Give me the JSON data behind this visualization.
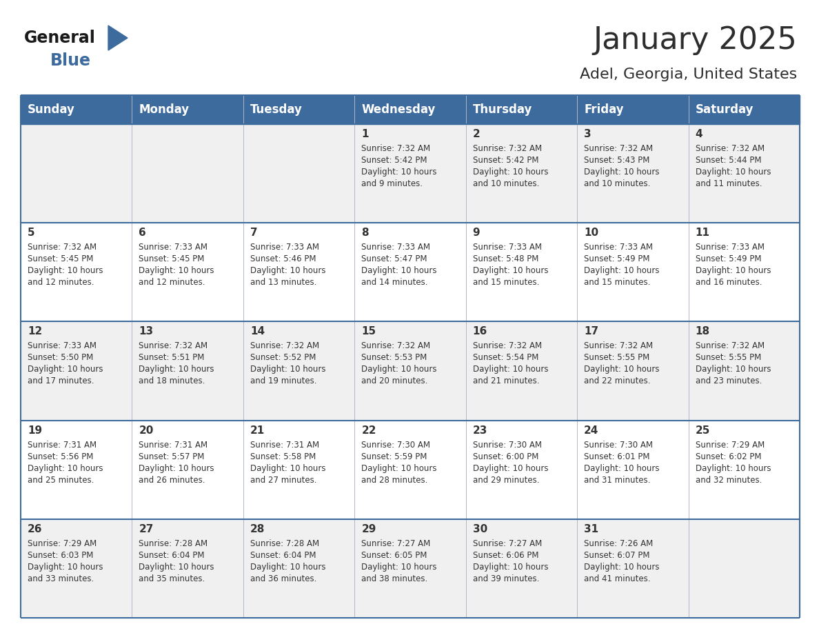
{
  "title": "January 2025",
  "subtitle": "Adel, Georgia, United States",
  "title_color": "#2d2d2d",
  "subtitle_color": "#2d2d2d",
  "header_bg_color": "#3d6b9e",
  "header_text_color": "#ffffff",
  "row_bg_color_light": "#f0f0f0",
  "row_bg_color_white": "#ffffff",
  "cell_text_color": "#333333",
  "day_number_color": "#333333",
  "grid_line_color": "#3d6b9e",
  "grid_line_color_v": "#b0b8c8",
  "days_of_week": [
    "Sunday",
    "Monday",
    "Tuesday",
    "Wednesday",
    "Thursday",
    "Friday",
    "Saturday"
  ],
  "weeks": [
    [
      {
        "day": "",
        "info": ""
      },
      {
        "day": "",
        "info": ""
      },
      {
        "day": "",
        "info": ""
      },
      {
        "day": "1",
        "info": "Sunrise: 7:32 AM\nSunset: 5:42 PM\nDaylight: 10 hours\nand 9 minutes."
      },
      {
        "day": "2",
        "info": "Sunrise: 7:32 AM\nSunset: 5:42 PM\nDaylight: 10 hours\nand 10 minutes."
      },
      {
        "day": "3",
        "info": "Sunrise: 7:32 AM\nSunset: 5:43 PM\nDaylight: 10 hours\nand 10 minutes."
      },
      {
        "day": "4",
        "info": "Sunrise: 7:32 AM\nSunset: 5:44 PM\nDaylight: 10 hours\nand 11 minutes."
      }
    ],
    [
      {
        "day": "5",
        "info": "Sunrise: 7:32 AM\nSunset: 5:45 PM\nDaylight: 10 hours\nand 12 minutes."
      },
      {
        "day": "6",
        "info": "Sunrise: 7:33 AM\nSunset: 5:45 PM\nDaylight: 10 hours\nand 12 minutes."
      },
      {
        "day": "7",
        "info": "Sunrise: 7:33 AM\nSunset: 5:46 PM\nDaylight: 10 hours\nand 13 minutes."
      },
      {
        "day": "8",
        "info": "Sunrise: 7:33 AM\nSunset: 5:47 PM\nDaylight: 10 hours\nand 14 minutes."
      },
      {
        "day": "9",
        "info": "Sunrise: 7:33 AM\nSunset: 5:48 PM\nDaylight: 10 hours\nand 15 minutes."
      },
      {
        "day": "10",
        "info": "Sunrise: 7:33 AM\nSunset: 5:49 PM\nDaylight: 10 hours\nand 15 minutes."
      },
      {
        "day": "11",
        "info": "Sunrise: 7:33 AM\nSunset: 5:49 PM\nDaylight: 10 hours\nand 16 minutes."
      }
    ],
    [
      {
        "day": "12",
        "info": "Sunrise: 7:33 AM\nSunset: 5:50 PM\nDaylight: 10 hours\nand 17 minutes."
      },
      {
        "day": "13",
        "info": "Sunrise: 7:32 AM\nSunset: 5:51 PM\nDaylight: 10 hours\nand 18 minutes."
      },
      {
        "day": "14",
        "info": "Sunrise: 7:32 AM\nSunset: 5:52 PM\nDaylight: 10 hours\nand 19 minutes."
      },
      {
        "day": "15",
        "info": "Sunrise: 7:32 AM\nSunset: 5:53 PM\nDaylight: 10 hours\nand 20 minutes."
      },
      {
        "day": "16",
        "info": "Sunrise: 7:32 AM\nSunset: 5:54 PM\nDaylight: 10 hours\nand 21 minutes."
      },
      {
        "day": "17",
        "info": "Sunrise: 7:32 AM\nSunset: 5:55 PM\nDaylight: 10 hours\nand 22 minutes."
      },
      {
        "day": "18",
        "info": "Sunrise: 7:32 AM\nSunset: 5:55 PM\nDaylight: 10 hours\nand 23 minutes."
      }
    ],
    [
      {
        "day": "19",
        "info": "Sunrise: 7:31 AM\nSunset: 5:56 PM\nDaylight: 10 hours\nand 25 minutes."
      },
      {
        "day": "20",
        "info": "Sunrise: 7:31 AM\nSunset: 5:57 PM\nDaylight: 10 hours\nand 26 minutes."
      },
      {
        "day": "21",
        "info": "Sunrise: 7:31 AM\nSunset: 5:58 PM\nDaylight: 10 hours\nand 27 minutes."
      },
      {
        "day": "22",
        "info": "Sunrise: 7:30 AM\nSunset: 5:59 PM\nDaylight: 10 hours\nand 28 minutes."
      },
      {
        "day": "23",
        "info": "Sunrise: 7:30 AM\nSunset: 6:00 PM\nDaylight: 10 hours\nand 29 minutes."
      },
      {
        "day": "24",
        "info": "Sunrise: 7:30 AM\nSunset: 6:01 PM\nDaylight: 10 hours\nand 31 minutes."
      },
      {
        "day": "25",
        "info": "Sunrise: 7:29 AM\nSunset: 6:02 PM\nDaylight: 10 hours\nand 32 minutes."
      }
    ],
    [
      {
        "day": "26",
        "info": "Sunrise: 7:29 AM\nSunset: 6:03 PM\nDaylight: 10 hours\nand 33 minutes."
      },
      {
        "day": "27",
        "info": "Sunrise: 7:28 AM\nSunset: 6:04 PM\nDaylight: 10 hours\nand 35 minutes."
      },
      {
        "day": "28",
        "info": "Sunrise: 7:28 AM\nSunset: 6:04 PM\nDaylight: 10 hours\nand 36 minutes."
      },
      {
        "day": "29",
        "info": "Sunrise: 7:27 AM\nSunset: 6:05 PM\nDaylight: 10 hours\nand 38 minutes."
      },
      {
        "day": "30",
        "info": "Sunrise: 7:27 AM\nSunset: 6:06 PM\nDaylight: 10 hours\nand 39 minutes."
      },
      {
        "day": "31",
        "info": "Sunrise: 7:26 AM\nSunset: 6:07 PM\nDaylight: 10 hours\nand 41 minutes."
      },
      {
        "day": "",
        "info": ""
      }
    ]
  ],
  "logo_text_general": "General",
  "logo_text_blue": "Blue",
  "logo_general_color": "#1a1a1a",
  "logo_blue_color": "#3d6b9e",
  "logo_triangle_color": "#3d6b9e",
  "title_fontsize": 32,
  "subtitle_fontsize": 16,
  "header_fontsize": 12,
  "day_num_fontsize": 11,
  "cell_fontsize": 8.5
}
